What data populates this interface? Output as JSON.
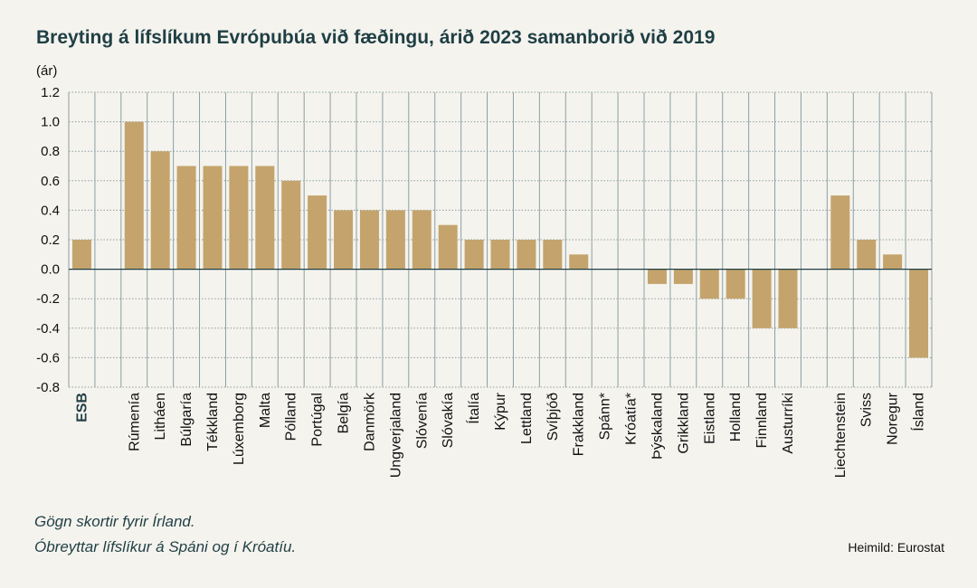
{
  "title": "Breyting á lífslíkum Evrópubúa við fæðingu, árið 2023 samanborið við 2019",
  "footnotes": [
    "Gögn skortir fyrir Írland.",
    "Óbreyttar lífslíkur á Spáni og í Króatíu."
  ],
  "source": "Heimild: Eurostat",
  "colors": {
    "bar": "#c4a46c",
    "text": "#1f3f44",
    "grid": "#8aa0a3",
    "zero_line": "#1f3f44",
    "background": "#f5f3ee"
  },
  "chart_data": {
    "type": "bar",
    "ylabel": "(ár)",
    "ylim": [
      -0.8,
      1.2
    ],
    "yticks": [
      "1.2",
      "1.0",
      "0.8",
      "0.6",
      "0.4",
      "0.2",
      "0.0",
      "-0.2",
      "-0.4",
      "-0.6",
      "-0.8"
    ],
    "grid": true,
    "categories": [
      "ESB",
      "",
      "Rúmenía",
      "Litháen",
      "Búlgaría",
      "Tékkland",
      "Lúxemborg",
      "Malta",
      "Pólland",
      "Portúgal",
      "Belgía",
      "Danmörk",
      "Ungverjaland",
      "Slóvenía",
      "Slóvakía",
      "Ítalía",
      "Kýpur",
      "Lettland",
      "Svíþjóð",
      "Frakkland",
      "Spánn*",
      "Króatía*",
      "Þýskaland",
      "Grikkland",
      "Eistland",
      "Holland",
      "Finnland",
      "Austurríki",
      "",
      "Liechtenstein",
      "Sviss",
      "Noregur",
      "Ísland"
    ],
    "values": [
      0.2,
      null,
      1.0,
      0.8,
      0.7,
      0.7,
      0.7,
      0.7,
      0.6,
      0.5,
      0.4,
      0.4,
      0.4,
      0.4,
      0.3,
      0.2,
      0.2,
      0.2,
      0.2,
      0.1,
      0.0,
      0.0,
      -0.1,
      -0.1,
      -0.2,
      -0.2,
      -0.4,
      -0.4,
      null,
      0.5,
      0.2,
      0.1,
      -0.6
    ],
    "bold_categories": [
      "ESB"
    ]
  }
}
